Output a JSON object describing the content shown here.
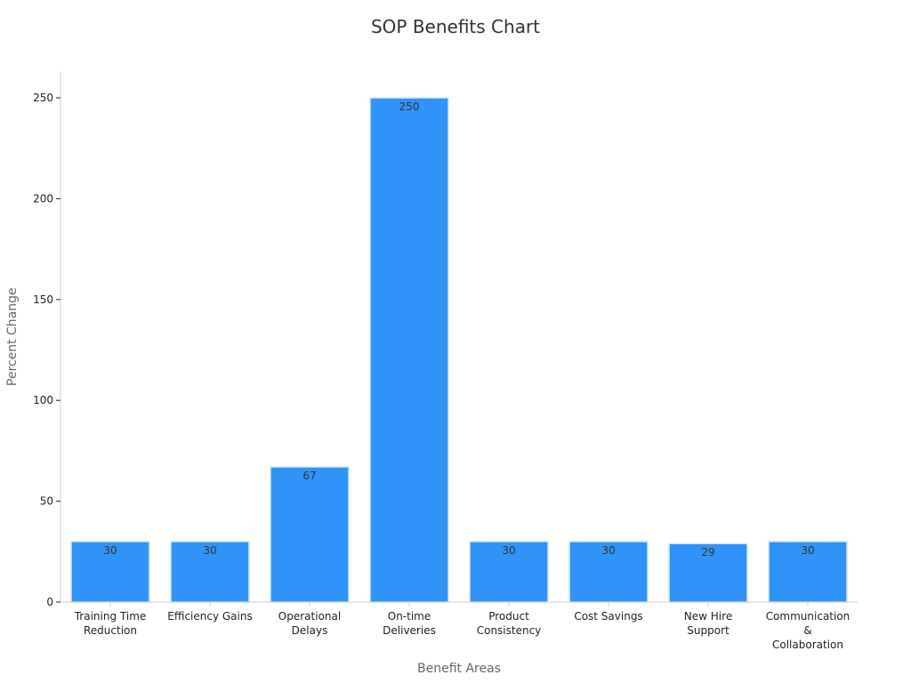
{
  "chart_data": {
    "type": "bar",
    "title": "SOP Benefits Chart",
    "xlabel": "Benefit Areas",
    "ylabel": "Percent Change",
    "categories": [
      [
        "Training Time",
        "Reduction"
      ],
      [
        "Efficiency Gains"
      ],
      [
        "Operational",
        "Delays"
      ],
      [
        "On-time",
        "Deliveries"
      ],
      [
        "Product",
        "Consistency"
      ],
      [
        "Cost Savings"
      ],
      [
        "New Hire",
        "Support"
      ],
      [
        "Communication",
        "&",
        "Collaboration"
      ]
    ],
    "values": [
      30,
      30,
      67,
      250,
      30,
      30,
      29,
      30
    ],
    "data_labels": [
      "30",
      "30",
      "67",
      "250",
      "30",
      "30",
      "29",
      "30"
    ],
    "yticks": [
      0,
      50,
      100,
      150,
      200,
      250
    ],
    "ylim": [
      0,
      263
    ],
    "grid": false,
    "legend": "none",
    "colors": {
      "bar": "#2f93f7",
      "bar_edge": "#d6e6f8",
      "axis": "#cccccc",
      "tick_text": "#222222",
      "axis_label": "#666666",
      "data_label": "#333333",
      "title": "#333333"
    }
  }
}
